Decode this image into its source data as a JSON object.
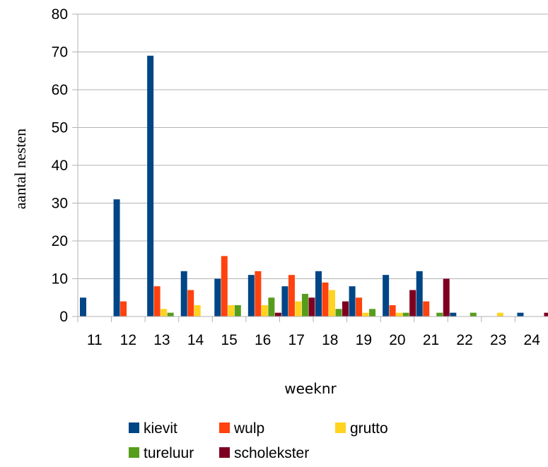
{
  "chart_data": {
    "type": "bar",
    "title": "",
    "xlabel": "weeknr",
    "ylabel": "aantal nesten",
    "ylim": [
      0,
      80
    ],
    "yticks": [
      0,
      10,
      20,
      30,
      40,
      50,
      60,
      70,
      80
    ],
    "grid": "horizontal",
    "legend_position": "bottom",
    "categories": [
      "11",
      "12",
      "13",
      "14",
      "15",
      "16",
      "17",
      "18",
      "19",
      "20",
      "21",
      "22",
      "23",
      "24"
    ],
    "series": [
      {
        "name": "kievit",
        "color": "#004586",
        "values": [
          5,
          31,
          69,
          12,
          10,
          11,
          8,
          12,
          8,
          11,
          12,
          1,
          0,
          1
        ]
      },
      {
        "name": "wulp",
        "color": "#ff420e",
        "values": [
          0,
          4,
          8,
          7,
          16,
          12,
          11,
          9,
          5,
          3,
          4,
          0,
          0,
          0
        ]
      },
      {
        "name": "grutto",
        "color": "#ffd320",
        "values": [
          0,
          0,
          2,
          3,
          3,
          3,
          4,
          7,
          1,
          1,
          0,
          0,
          1,
          0
        ]
      },
      {
        "name": "tureluur",
        "color": "#579d1c",
        "values": [
          0,
          0,
          1,
          0,
          3,
          5,
          6,
          2,
          2,
          1,
          1,
          1,
          0,
          0
        ]
      },
      {
        "name": "scholekster",
        "color": "#7e0021",
        "values": [
          0,
          0,
          0,
          0,
          0,
          1,
          5,
          4,
          0,
          7,
          10,
          0,
          0,
          1
        ]
      }
    ]
  }
}
